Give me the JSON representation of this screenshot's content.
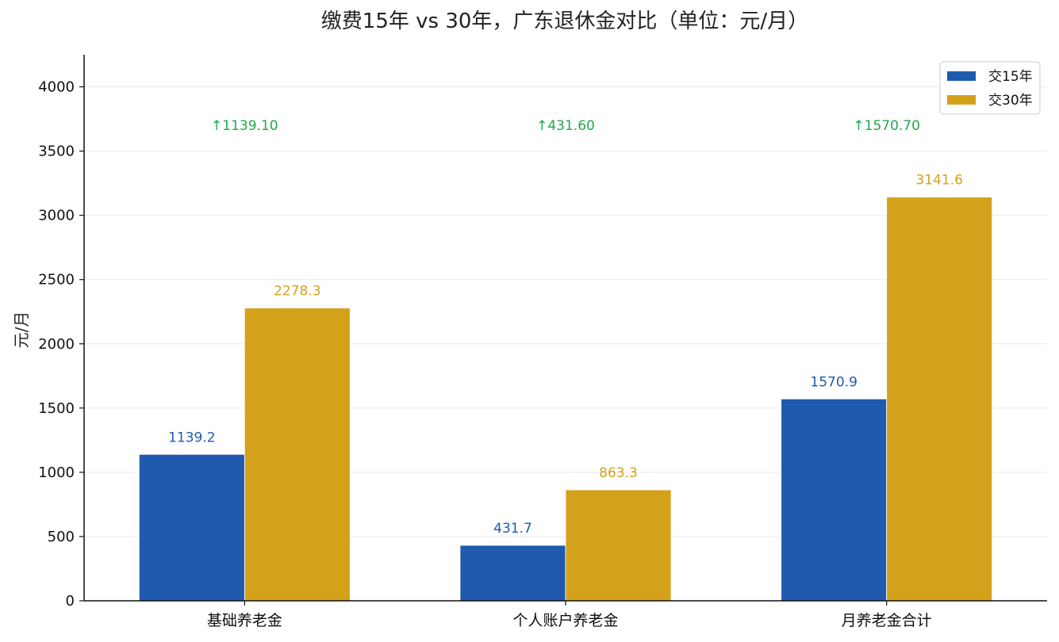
{
  "colors": {
    "series_15": "#1f5aaf",
    "series_30": "#d4a21a",
    "diff": "#22a84a",
    "axis": "#111111",
    "grid": "#e9e9e9"
  },
  "chart_data": {
    "type": "bar",
    "title": "缴费15年 vs 30年，广东退休金对比（单位：元/月）",
    "xlabel": "",
    "ylabel": "元/月",
    "categories": [
      "基础养老金",
      "个人账户养老金",
      "月养老金合计"
    ],
    "series": [
      {
        "name": "交15年",
        "values": [
          1139.2,
          431.7,
          1570.9
        ],
        "labels": [
          "1139.2",
          "431.7",
          "1570.9"
        ]
      },
      {
        "name": "交30年",
        "values": [
          2278.3,
          863.3,
          3141.6
        ],
        "labels": [
          "2278.3",
          "863.3",
          "3141.6"
        ]
      }
    ],
    "differences": [
      "↑1139.10",
      "↑431.60",
      "↑1570.70"
    ],
    "differences_y": 3700,
    "ylim": [
      0,
      4250
    ],
    "yticks": [
      0,
      500,
      1000,
      1500,
      2000,
      2500,
      3000,
      3500,
      4000
    ],
    "grid": true,
    "legend": "top-right"
  }
}
